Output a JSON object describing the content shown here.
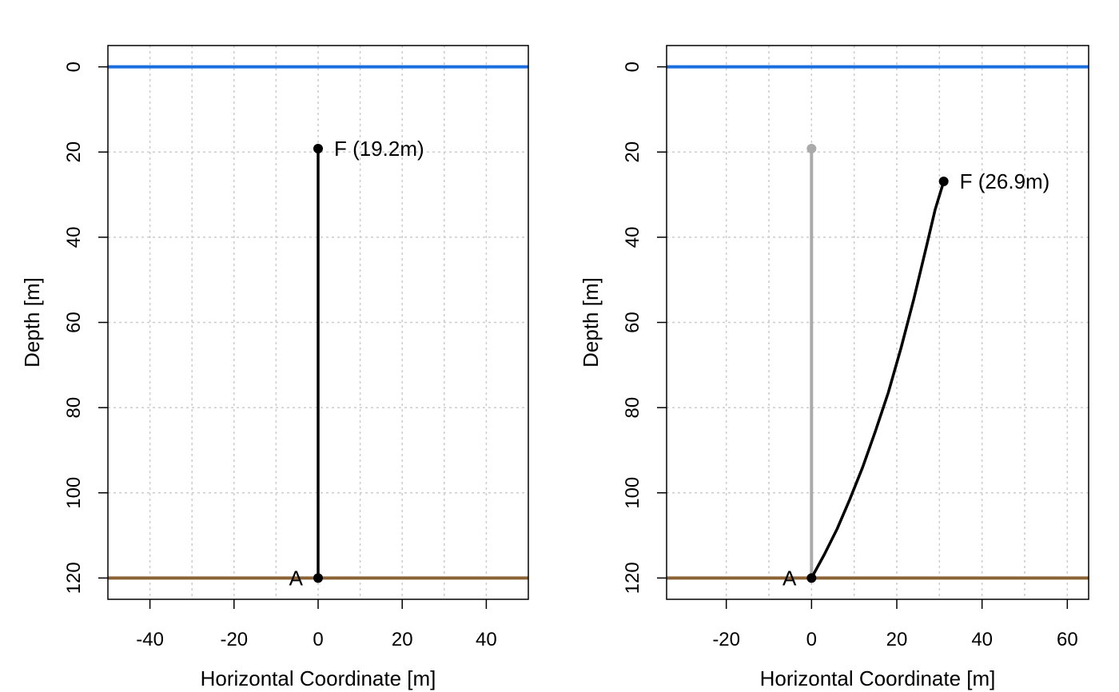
{
  "colors": {
    "surface": "#1a6ee0",
    "seabed": "#8b6234",
    "line": "#000000",
    "ghost": "#aaaaaa",
    "grid": "#cccccc"
  },
  "chart_data": [
    {
      "type": "line",
      "xlabel": "Horizontal Coordinate [m]",
      "ylabel": "Depth [m]",
      "xlim": [
        -50,
        50
      ],
      "ylim": [
        -5,
        125
      ],
      "y_inverted": true,
      "xticks": [
        -40,
        -20,
        0,
        20,
        40
      ],
      "xtick_labels": [
        "-40",
        "-20",
        "0",
        "20",
        "40"
      ],
      "yticks": [
        0,
        20,
        40,
        60,
        80,
        100,
        120
      ],
      "ytick_labels": [
        "0",
        "20",
        "40",
        "60",
        "80",
        "100",
        "120"
      ],
      "xgrid": [
        -40,
        -30,
        -20,
        -10,
        0,
        10,
        20,
        30,
        40
      ],
      "ygrid": [
        0,
        20,
        40,
        60,
        80,
        100,
        120
      ],
      "surface_depth": 0,
      "seabed_depth": 120,
      "series": [
        {
          "role": "mooring",
          "x": [
            0,
            0
          ],
          "y": [
            120,
            19.2
          ]
        }
      ],
      "points": [
        {
          "x": 0,
          "y": 19.2,
          "label": "F (19.2m)",
          "side": "right"
        },
        {
          "x": 0,
          "y": 120,
          "label": "A",
          "side": "left"
        }
      ],
      "grid": true
    },
    {
      "type": "line",
      "xlabel": "Horizontal Coordinate [m]",
      "ylabel": "Depth [m]",
      "xlim": [
        -34,
        65
      ],
      "ylim": [
        -5,
        125
      ],
      "y_inverted": true,
      "xticks": [
        -20,
        0,
        20,
        40,
        60
      ],
      "xtick_labels": [
        "-20",
        "0",
        "20",
        "40",
        "60"
      ],
      "yticks": [
        0,
        20,
        40,
        60,
        80,
        100,
        120
      ],
      "ytick_labels": [
        "0",
        "20",
        "40",
        "60",
        "80",
        "100",
        "120"
      ],
      "xgrid": [
        -20,
        -10,
        0,
        10,
        20,
        30,
        40,
        50,
        60
      ],
      "ygrid": [
        0,
        20,
        40,
        60,
        80,
        100,
        120
      ],
      "surface_depth": 0,
      "seabed_depth": 120,
      "series": [
        {
          "role": "original",
          "x": [
            0,
            0
          ],
          "y": [
            120,
            19.2
          ]
        },
        {
          "role": "mooring",
          "x": [
            0,
            3,
            6,
            9,
            12,
            15,
            18,
            21,
            24,
            27,
            29,
            31
          ],
          "y": [
            120,
            114.5,
            108.5,
            101.5,
            94,
            85.5,
            76.5,
            66,
            54.5,
            42,
            33.5,
            26.9
          ]
        }
      ],
      "points": [
        {
          "x": 0,
          "y": 19.2,
          "label": "",
          "side": "none",
          "ghost": true
        },
        {
          "x": 31,
          "y": 26.9,
          "label": "F (26.9m)",
          "side": "right"
        },
        {
          "x": 0,
          "y": 120,
          "label": "A",
          "side": "left"
        }
      ],
      "grid": true
    }
  ]
}
